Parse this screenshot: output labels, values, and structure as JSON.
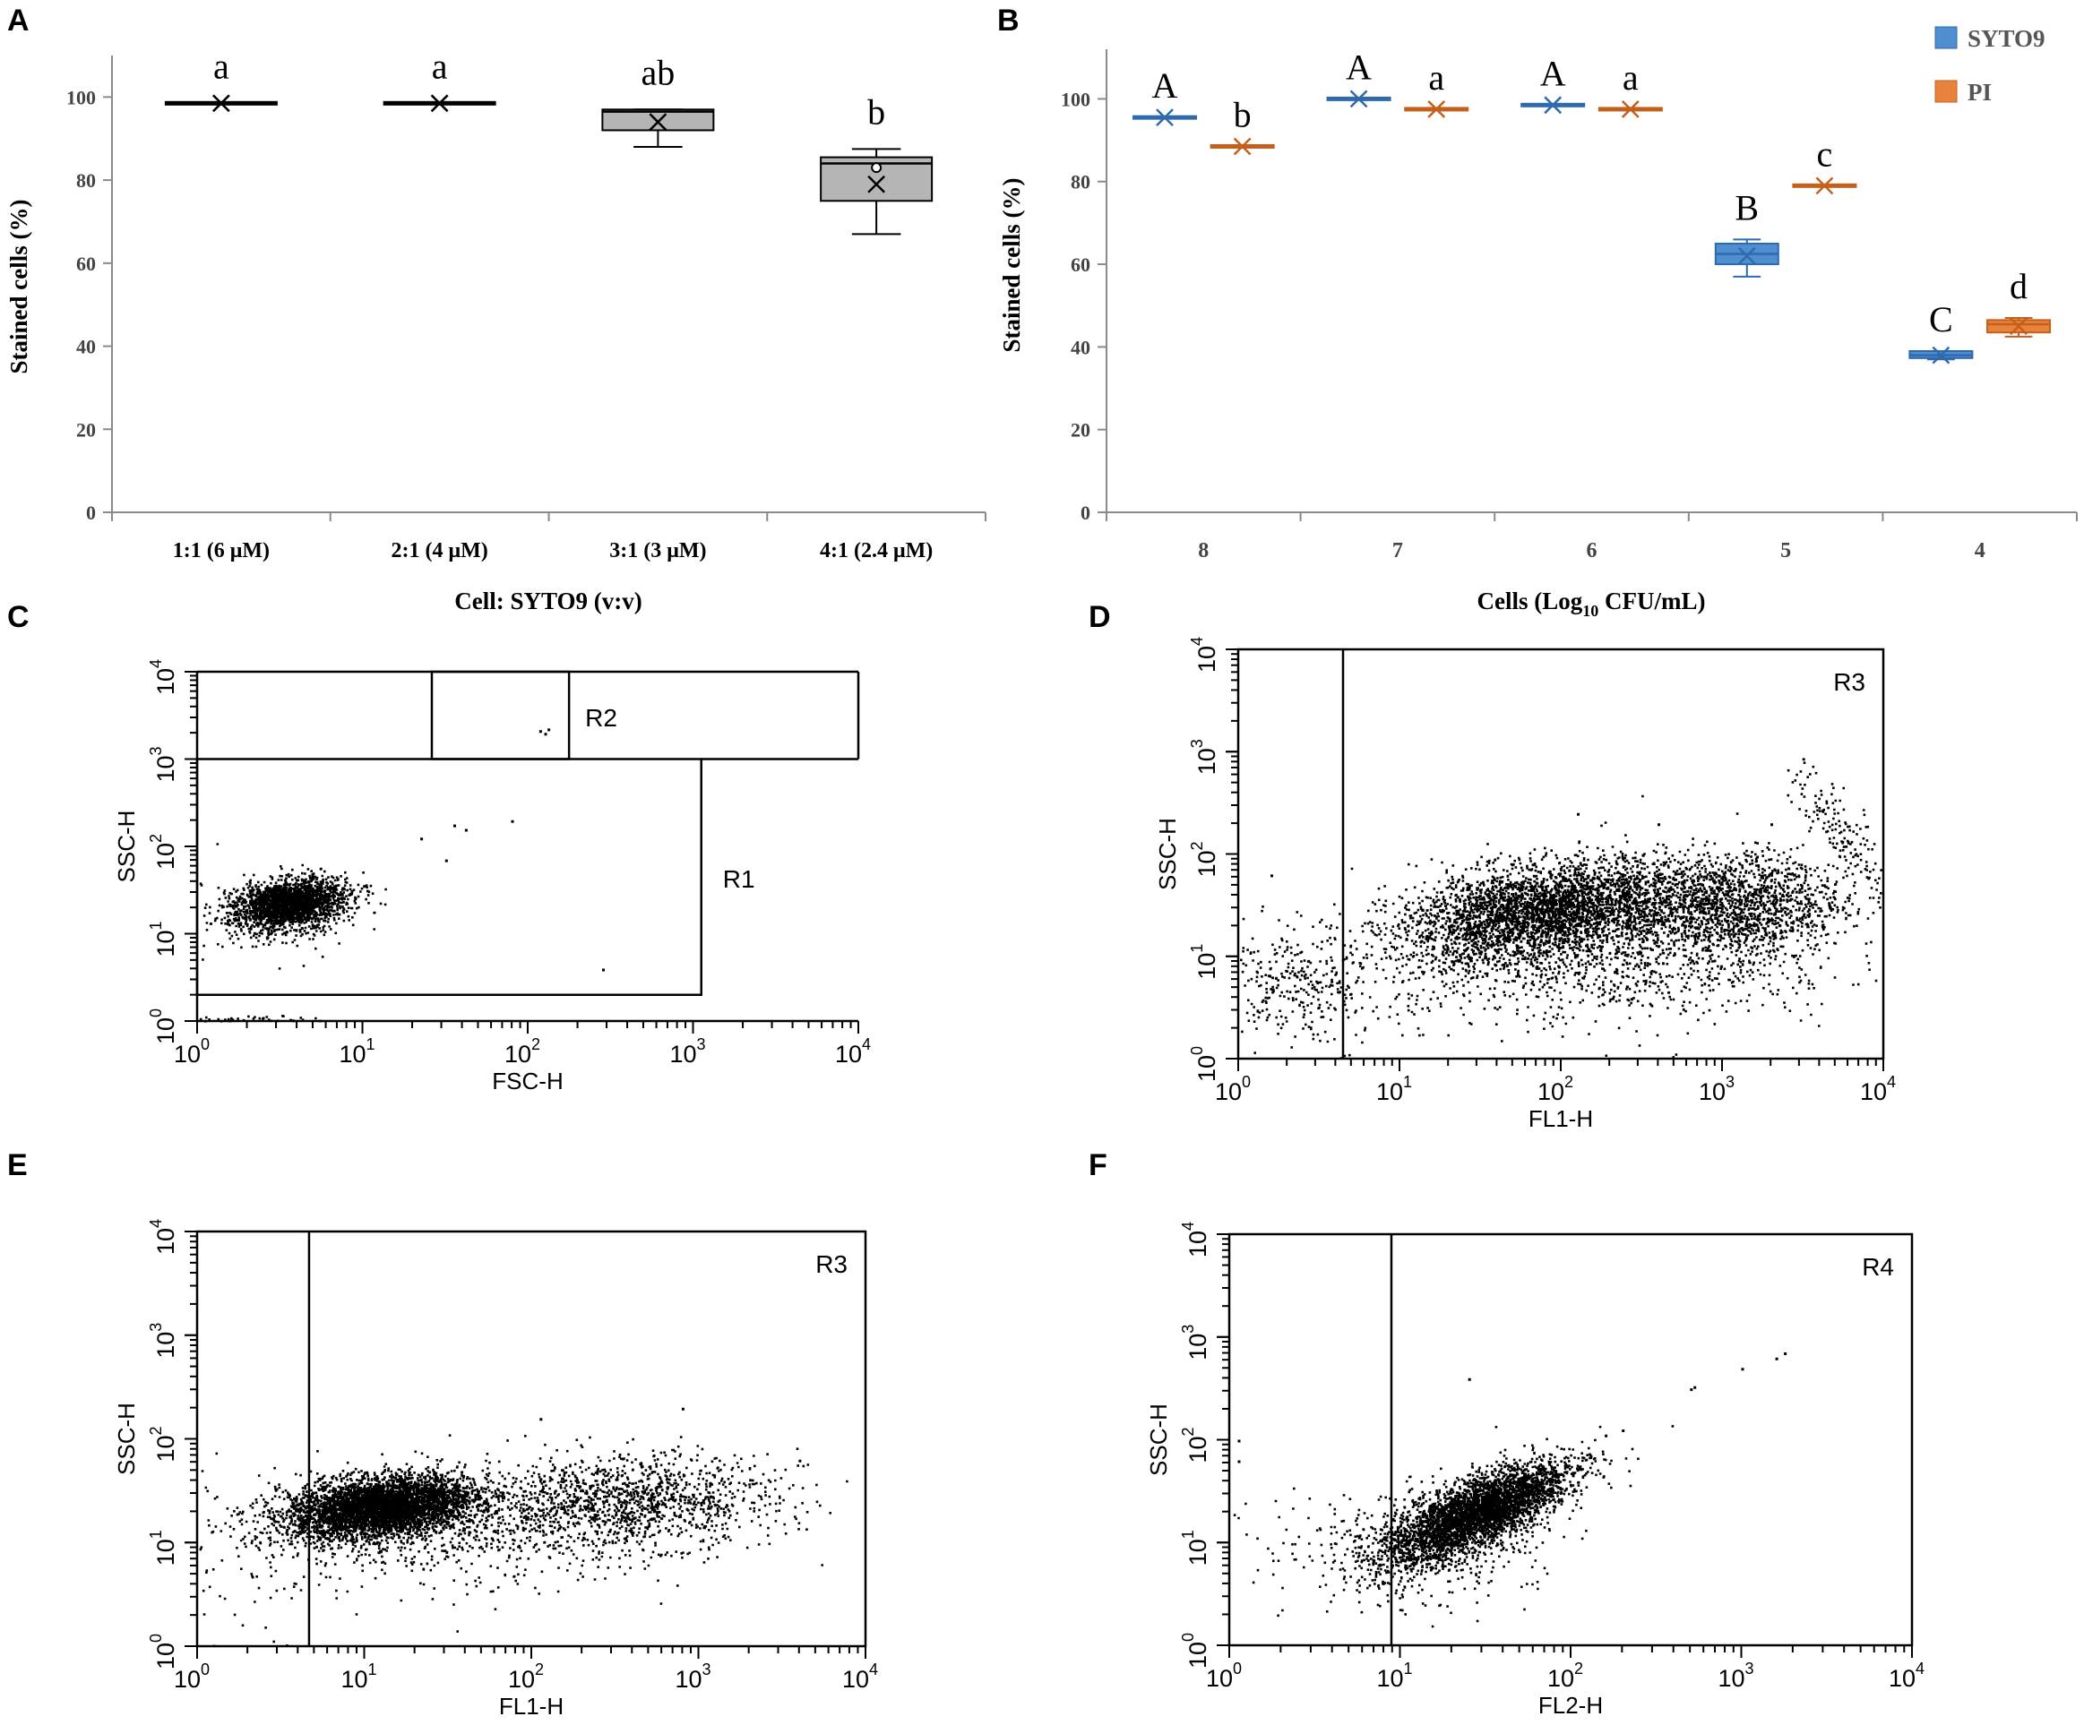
{
  "colors": {
    "syto9": "#4f8fd0",
    "syto9_dark": "#2f6aad",
    "pi": "#e8833c",
    "pi_dark": "#c4601c",
    "box_gray": "#b5b5b5",
    "ink": "#000000",
    "axis": "#8a8a8a"
  },
  "chart_data": [
    {
      "panel": "A",
      "type": "box",
      "xlabel": "Cell: SYTO9 (v:v)",
      "ylabel": "Stained cells (%)",
      "ylim": [
        0,
        110
      ],
      "yticks": [
        "0",
        "20",
        "40",
        "60",
        "80",
        "100"
      ],
      "categories": [
        "1:1 (6 μM)",
        "2:1 (4 μM)",
        "3:1 (3 μM)",
        "4:1  (2.4 μM)"
      ],
      "boxes": [
        {
          "min": 98.5,
          "q1": 98.5,
          "median": 98.5,
          "q3": 98.5,
          "max": 98.5,
          "mean": 98.5,
          "letter": "a"
        },
        {
          "min": 98.5,
          "q1": 98.5,
          "median": 98.5,
          "q3": 98.5,
          "max": 98.5,
          "mean": 98.5,
          "letter": "a"
        },
        {
          "min": 88,
          "q1": 92,
          "median": 96.5,
          "q3": 97,
          "max": 97,
          "mean": 94,
          "letter": "ab"
        },
        {
          "min": 67,
          "q1": 75,
          "median": 84,
          "q3": 85.5,
          "max": 87.5,
          "mean": 79,
          "outlier": 83,
          "letter": "b"
        }
      ]
    },
    {
      "panel": "B",
      "type": "box",
      "xlabel_main": "Cells (Log",
      "xlabel_sub": "10",
      "xlabel_tail": " CFU/mL)",
      "ylabel": "Stained cells (%)",
      "ylim": [
        0,
        112
      ],
      "yticks": [
        "0",
        "20",
        "40",
        "60",
        "80",
        "100"
      ],
      "categories": [
        "8",
        "7",
        "6",
        "5",
        "4"
      ],
      "legend": [
        "SYTO9",
        "PI"
      ],
      "series": [
        {
          "name": "SYTO9",
          "boxes": [
            {
              "min": 95.5,
              "q1": 95.5,
              "median": 95.5,
              "q3": 95.5,
              "max": 95.5,
              "mean": 95.5,
              "letter": "A"
            },
            {
              "min": 100,
              "q1": 100,
              "median": 100,
              "q3": 100,
              "max": 100,
              "mean": 100,
              "letter": "A"
            },
            {
              "min": 98.5,
              "q1": 98.5,
              "median": 98.5,
              "q3": 98.5,
              "max": 98.5,
              "mean": 98.5,
              "letter": "A"
            },
            {
              "min": 57,
              "q1": 60,
              "median": 62.5,
              "q3": 65,
              "max": 66,
              "mean": 62,
              "letter": "B"
            },
            {
              "min": 37,
              "q1": 37.3,
              "median": 38,
              "q3": 39,
              "max": 39,
              "mean": 38,
              "letter": "C"
            }
          ]
        },
        {
          "name": "PI",
          "boxes": [
            {
              "min": 88.5,
              "q1": 88.5,
              "median": 88.5,
              "q3": 88.5,
              "max": 88.5,
              "mean": 88.5,
              "letter": "b"
            },
            {
              "min": 97.5,
              "q1": 97.5,
              "median": 97.5,
              "q3": 97.5,
              "max": 97.5,
              "mean": 97.5,
              "letter": "a"
            },
            {
              "min": 97.5,
              "q1": 97.5,
              "median": 97.5,
              "q3": 97.5,
              "max": 97.5,
              "mean": 97.5,
              "letter": "a"
            },
            {
              "min": 79,
              "q1": 79,
              "median": 79,
              "q3": 79,
              "max": 79,
              "mean": 79,
              "letter": "c"
            },
            {
              "min": 42.5,
              "q1": 43.5,
              "median": 45.5,
              "q3": 46.5,
              "max": 47,
              "mean": 45,
              "letter": "d"
            }
          ]
        }
      ]
    },
    {
      "panel": "C",
      "type": "scatter",
      "xlabel": "FSC-H",
      "ylabel": "SSC-H",
      "xlim_log10": [
        0,
        4
      ],
      "ylim_log10": [
        0,
        4
      ],
      "ticks": [
        "10",
        "0",
        "10",
        "1",
        "10",
        "2",
        "10",
        "3",
        "10",
        "4"
      ],
      "gates": [
        {
          "name": "R1",
          "x_log10": [
            0,
            3.05
          ],
          "y_log10": [
            0.3,
            3.0
          ]
        },
        {
          "name": "R2",
          "x_log10": [
            1.42,
            2.25
          ],
          "y_log10": [
            3.0,
            4.0
          ]
        }
      ],
      "clusters": [
        {
          "cx": 0.55,
          "cy": 1.35,
          "sx": 0.18,
          "sy": 0.13,
          "rot": 0.5,
          "n": 2200
        },
        {
          "cx": 0.45,
          "cy": 1.2,
          "sx": 0.3,
          "sy": 0.25,
          "rot": 0.5,
          "n": 120
        },
        {
          "cx": 0.35,
          "cy": 0.0,
          "sx": 0.25,
          "sy": 0.03,
          "rot": 0,
          "n": 160
        }
      ],
      "extra_points": [
        [
          1.9,
          2.3
        ],
        [
          2.07,
          3.33
        ],
        [
          2.12,
          3.35
        ],
        [
          2.1,
          3.3
        ],
        [
          2.45,
          0.6
        ],
        [
          1.35,
          2.1
        ],
        [
          1.55,
          2.25
        ],
        [
          1.62,
          2.2
        ],
        [
          1.5,
          1.85
        ]
      ]
    },
    {
      "panel": "D",
      "type": "scatter",
      "xlabel": "FL1-H",
      "ylabel": "SSC-H",
      "xlim_log10": [
        0,
        4
      ],
      "ylim_log10": [
        0,
        4
      ],
      "ticks": [
        "10",
        "0",
        "10",
        "1",
        "10",
        "2",
        "10",
        "3",
        "10",
        "4"
      ],
      "gates": [
        {
          "name": "R3",
          "x_log10_min": 0.65
        }
      ],
      "clusters": [
        {
          "cx": 1.9,
          "cy": 1.45,
          "sx": 0.45,
          "sy": 0.22,
          "rot": 0.25,
          "n": 3500
        },
        {
          "cx": 3.05,
          "cy": 1.5,
          "sx": 0.35,
          "sy": 0.25,
          "rot": 0.1,
          "n": 1600
        },
        {
          "cx": 2.2,
          "cy": 0.9,
          "sx": 0.8,
          "sy": 0.28,
          "rot": 0,
          "n": 900
        },
        {
          "cx": 0.35,
          "cy": 0.7,
          "sx": 0.22,
          "sy": 0.3,
          "rot": 0.3,
          "n": 300
        },
        {
          "cx": 3.75,
          "cy": 2.2,
          "sx": 0.08,
          "sy": 0.35,
          "rot": 0.4,
          "n": 160
        }
      ],
      "extra_points": [
        [
          0.2,
          1.8
        ],
        [
          2.1,
          2.4
        ],
        [
          2.6,
          2.3
        ],
        [
          3.3,
          2.3
        ]
      ]
    },
    {
      "panel": "E",
      "type": "scatter",
      "xlabel": "FL1-H",
      "ylabel": "SSC-H",
      "xlim_log10": [
        0,
        4
      ],
      "ylim_log10": [
        0,
        4
      ],
      "ticks": [
        "10",
        "0",
        "10",
        "1",
        "10",
        "2",
        "10",
        "3",
        "10",
        "4"
      ],
      "gates": [
        {
          "name": "R3",
          "x_log10_min": 0.67
        }
      ],
      "clusters": [
        {
          "cx": 1.1,
          "cy": 1.35,
          "sx": 0.28,
          "sy": 0.14,
          "rot": 0.2,
          "n": 4500
        },
        {
          "cx": 2.55,
          "cy": 1.4,
          "sx": 0.45,
          "sy": 0.22,
          "rot": 0.05,
          "n": 1300
        },
        {
          "cx": 1.5,
          "cy": 1.1,
          "sx": 0.7,
          "sy": 0.28,
          "rot": 0,
          "n": 600
        },
        {
          "cx": 0.3,
          "cy": 0.8,
          "sx": 0.25,
          "sy": 0.45,
          "rot": 0,
          "n": 80
        }
      ],
      "extra_points": [
        [
          2.05,
          2.2
        ],
        [
          2.9,
          2.3
        ],
        [
          3.6,
          1.8
        ]
      ]
    },
    {
      "panel": "F",
      "type": "scatter",
      "xlabel": "FL2-H",
      "ylabel": "SSC-H",
      "xlim_log10": [
        0,
        4
      ],
      "ylim_log10": [
        0,
        4
      ],
      "ticks": [
        "10",
        "0",
        "10",
        "1",
        "10",
        "2",
        "10",
        "3",
        "10",
        "4"
      ],
      "gates": [
        {
          "name": "R4",
          "x_log10_min": 0.95
        }
      ],
      "clusters": [
        {
          "cx": 1.45,
          "cy": 1.3,
          "sx": 0.33,
          "sy": 0.13,
          "rot": 0.72,
          "n": 3800
        },
        {
          "cx": 1.2,
          "cy": 1.0,
          "sx": 0.35,
          "sy": 0.28,
          "rot": 0.6,
          "n": 400
        },
        {
          "cx": 0.45,
          "cy": 1.0,
          "sx": 0.3,
          "sy": 0.35,
          "rot": 0.3,
          "n": 60
        }
      ],
      "extra_points": [
        [
          2.7,
          2.5
        ],
        [
          2.72,
          2.52
        ],
        [
          3.0,
          2.7
        ],
        [
          3.2,
          2.8
        ],
        [
          3.25,
          2.85
        ],
        [
          2.3,
          2.1
        ],
        [
          2.2,
          2.05
        ],
        [
          1.4,
          2.6
        ],
        [
          0.05,
          1.8
        ],
        [
          0.05,
          2.0
        ]
      ]
    }
  ]
}
